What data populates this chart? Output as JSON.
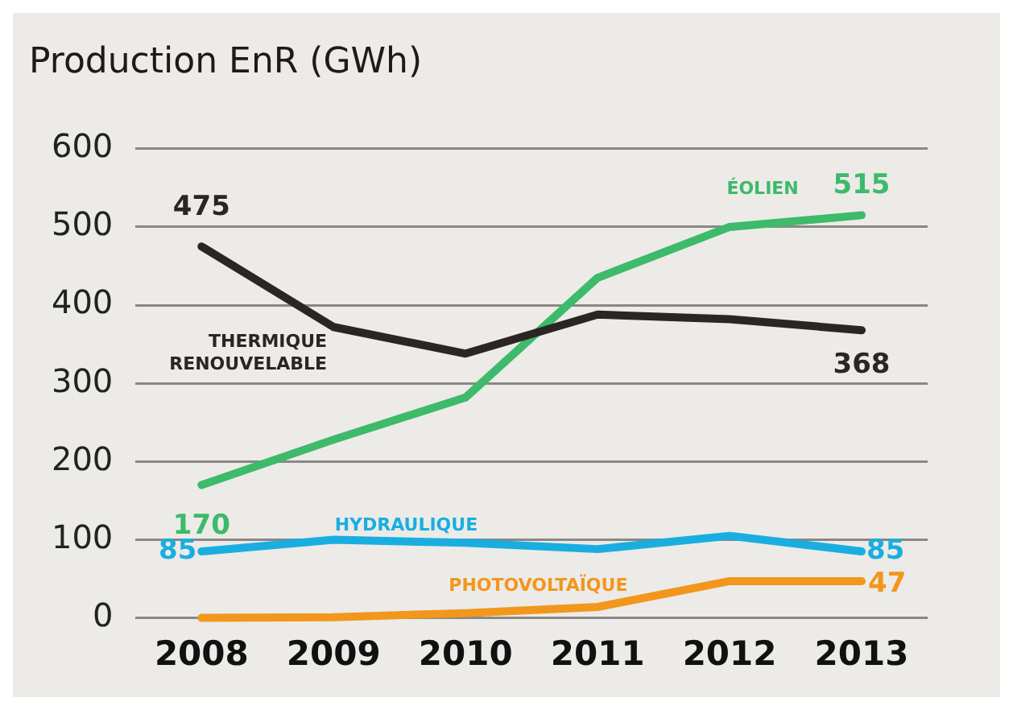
{
  "chart_data": {
    "type": "line",
    "title": "Production EnR (GWh)",
    "categories": [
      "2008",
      "2009",
      "2010",
      "2011",
      "2012",
      "2013"
    ],
    "series": [
      {
        "name": "THERMIQUE\nRENOUVELABLE",
        "color": "#2b2523",
        "values": [
          475,
          372,
          338,
          388,
          382,
          368
        ],
        "value_labels": [
          "475",
          null,
          null,
          null,
          null,
          "368"
        ]
      },
      {
        "name": "ÉOLIEN",
        "color": "#3dba6a",
        "values": [
          170,
          228,
          282,
          435,
          500,
          515
        ],
        "value_labels": [
          "170",
          null,
          null,
          null,
          null,
          "515"
        ]
      },
      {
        "name": "HYDRAULIQUE",
        "color": "#1aaee0",
        "values": [
          85,
          100,
          96,
          88,
          105,
          85
        ],
        "value_labels": [
          "85",
          null,
          null,
          null,
          null,
          "85"
        ]
      },
      {
        "name": "PHOTOVOLTAÏQUE",
        "color": "#f3961c",
        "values": [
          0,
          1,
          6,
          14,
          47,
          47
        ],
        "value_labels": [
          null,
          null,
          null,
          null,
          null,
          "47"
        ]
      }
    ],
    "ylim": [
      0,
      600
    ],
    "yticks": [
      0,
      100,
      200,
      300,
      400,
      500,
      600
    ],
    "grid": "y",
    "legend": false,
    "marker": "none",
    "line_style": "solid"
  }
}
